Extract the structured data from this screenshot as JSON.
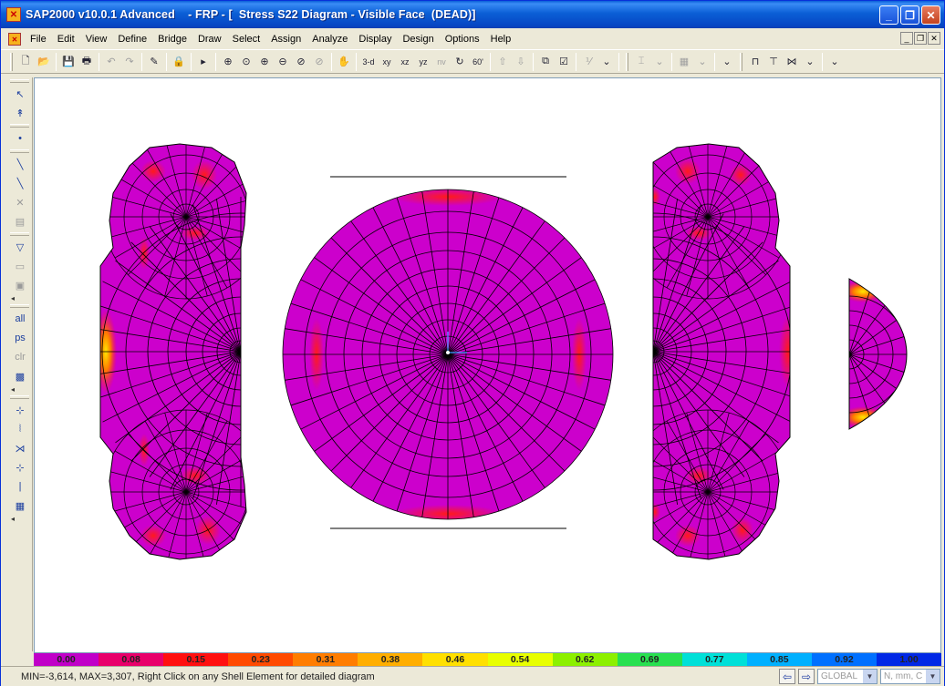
{
  "window": {
    "title": "SAP2000 v10.0.1 Advanced    - FRP - [  Stress S22 Diagram - Visible Face  (DEAD)]"
  },
  "menu": [
    "File",
    "Edit",
    "View",
    "Define",
    "Bridge",
    "Draw",
    "Select",
    "Assign",
    "Analyze",
    "Display",
    "Design",
    "Options",
    "Help"
  ],
  "toolbar": {
    "view_3d": "3-d",
    "view_xy": "xy",
    "view_xz": "xz",
    "view_yz": "yz",
    "view_nv": "nv",
    "view_60": "60'"
  },
  "left_toolbar": {
    "all_label": "all",
    "ps_label": "ps",
    "clr_label": "clr"
  },
  "legend": {
    "values": [
      "0.00",
      "0.08",
      "0.15",
      "0.23",
      "0.31",
      "0.38",
      "0.46",
      "0.54",
      "0.62",
      "0.69",
      "0.77",
      "0.85",
      "0.92",
      "1.00"
    ],
    "colors": [
      "#c000c8",
      "#e8006a",
      "#ff1010",
      "#ff4a00",
      "#ff7d00",
      "#ffae00",
      "#ffe000",
      "#e8ff00",
      "#8cf000",
      "#28e050",
      "#00e0d8",
      "#00b0ff",
      "#0070ff",
      "#0028e6"
    ]
  },
  "status": {
    "message": "MIN=-3,614, MAX=3,307, Right Click on any Shell Element for detailed diagram",
    "coord_system": "GLOBAL",
    "units": "N, mm, C"
  },
  "colors": {
    "shell_fill": "#cc00cc",
    "hot_red": "#ff1a1a",
    "orange": "#ff7a00",
    "yellow": "#ffe800"
  }
}
